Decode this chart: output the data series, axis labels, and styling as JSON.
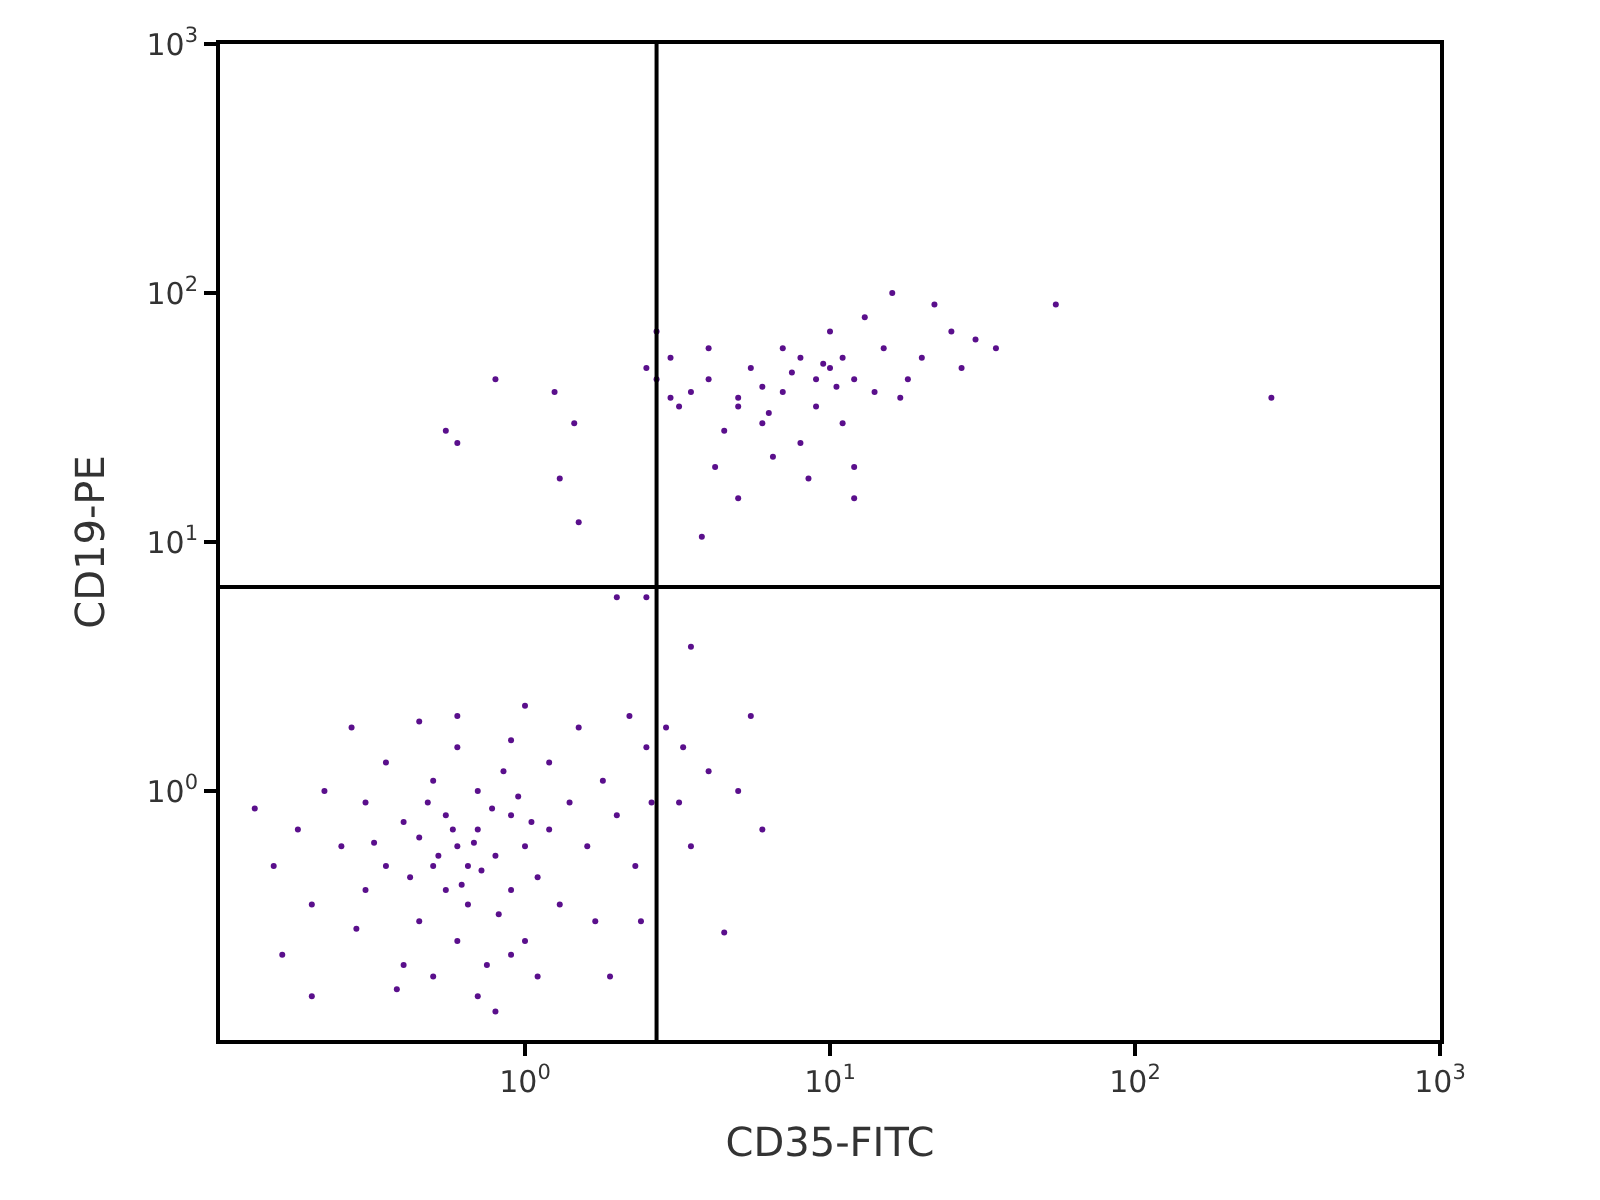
{
  "chart_data": {
    "type": "scatter",
    "xlabel": "CD35-FITC",
    "ylabel": "CD19-PE",
    "log": "xy",
    "grid": false,
    "marker": "circle",
    "xlim": [
      0.1,
      1000
    ],
    "ylim": [
      0.1,
      1000
    ],
    "xticks": [
      {
        "value": 1,
        "label": "10$^{0}$"
      },
      {
        "value": 10,
        "label": "10$^{1}$"
      },
      {
        "value": 100,
        "label": "10$^{2}$"
      },
      {
        "value": 1000,
        "label": "10$^{3}$"
      }
    ],
    "yticks": [
      {
        "value": 1,
        "label": "10$^{0}$"
      },
      {
        "value": 10,
        "label": "10$^{1}$"
      },
      {
        "value": 100,
        "label": "10$^{2}$"
      },
      {
        "value": 1000,
        "label": "10$^{3}$"
      }
    ],
    "ref_lines": [
      {
        "axis": "x",
        "value": 2.7,
        "color": "#000000"
      },
      {
        "axis": "y",
        "value": 6.6,
        "color": "#000000"
      }
    ],
    "series": [
      {
        "color": "#5a0f8c",
        "x": [
          0.6,
          0.5,
          0.7,
          0.8,
          0.45,
          0.55,
          0.65,
          0.9,
          0.35,
          0.4,
          1.0,
          1.2,
          0.3,
          0.25,
          0.7,
          0.5,
          0.85,
          0.6,
          0.75,
          0.45,
          1.1,
          1.4,
          1.6,
          0.2,
          0.18,
          0.3,
          0.55,
          0.65,
          0.9,
          1.3,
          0.4,
          0.7,
          0.8,
          0.5,
          1.0,
          0.35,
          0.6,
          0.9,
          1.2,
          1.8,
          2.0,
          2.3,
          1.7,
          0.15,
          0.13,
          0.22,
          0.28,
          0.38,
          0.48,
          0.58,
          0.68,
          0.78,
          0.95,
          1.05,
          0.42,
          0.52,
          0.62,
          0.72,
          0.82,
          0.32,
          1.5,
          2.5,
          2.6,
          2.2,
          0.27,
          0.16,
          1.1,
          0.9,
          0.6,
          1.0,
          0.45,
          2.4,
          0.2,
          1.9,
          3.2,
          3.5,
          4.0,
          5.0,
          4.5,
          5.5,
          3.3,
          6.0,
          2.5,
          3.5,
          1.5,
          2.9,
          7,
          5,
          10,
          4,
          6,
          8,
          12,
          15,
          9,
          5.5,
          3.5,
          4.5,
          6.5,
          11,
          14,
          20,
          25,
          18,
          10,
          7,
          8,
          12,
          3.2,
          3,
          4,
          13,
          16,
          22,
          30,
          9,
          6,
          11,
          5,
          7.5,
          9.5,
          17,
          4.2,
          8.5,
          12,
          5,
          3.8,
          27,
          35,
          55,
          280,
          2.7,
          2.7,
          3.0,
          6.3,
          10.5,
          0.6,
          0.55,
          0.8,
          1.25,
          1.45,
          1.3,
          2.5,
          2.0
        ],
        "values": [
          0.6,
          0.5,
          0.7,
          0.55,
          0.65,
          0.4,
          0.35,
          0.8,
          0.5,
          0.75,
          0.6,
          0.7,
          0.4,
          0.6,
          1.0,
          1.1,
          1.2,
          0.25,
          0.2,
          0.3,
          0.45,
          0.9,
          0.6,
          0.35,
          0.7,
          0.9,
          0.8,
          0.5,
          0.4,
          0.35,
          0.2,
          0.15,
          0.13,
          0.18,
          0.25,
          1.3,
          1.5,
          1.6,
          1.3,
          1.1,
          0.8,
          0.5,
          0.3,
          0.5,
          0.85,
          1.0,
          0.28,
          0.16,
          0.9,
          0.7,
          0.62,
          0.85,
          0.95,
          0.75,
          0.45,
          0.55,
          0.42,
          0.48,
          0.32,
          0.62,
          1.8,
          1.5,
          0.9,
          2.0,
          1.8,
          0.22,
          0.18,
          0.22,
          2.0,
          2.2,
          1.9,
          0.3,
          0.15,
          0.18,
          0.9,
          0.6,
          1.2,
          1.0,
          0.27,
          2.0,
          1.5,
          0.7,
          6.0,
          3.8,
          12,
          1.8,
          40,
          35,
          50,
          45,
          30,
          55,
          45,
          60,
          35,
          50,
          40,
          28,
          22,
          30,
          40,
          55,
          70,
          45,
          70,
          60,
          25,
          20,
          35,
          55,
          60,
          80,
          100,
          90,
          65,
          45,
          42,
          55,
          38,
          48,
          52,
          38,
          20,
          18,
          15,
          15,
          10.5,
          50,
          60,
          90,
          38,
          70,
          45,
          38,
          33,
          42,
          25,
          28,
          45,
          40,
          30,
          18,
          50,
          6.0
        ]
      }
    ]
  }
}
